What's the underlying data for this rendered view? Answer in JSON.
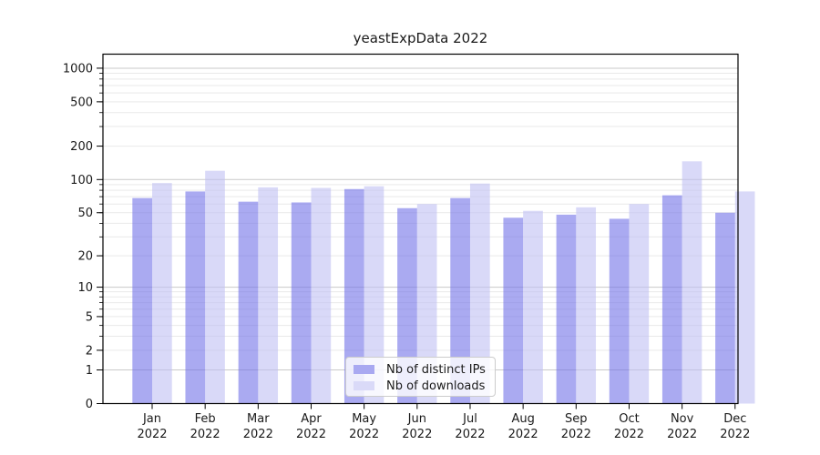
{
  "title": "yeastExpData 2022",
  "chart_data": {
    "type": "bar",
    "title": "yeastExpData 2022",
    "categories": [
      "Jan 2022",
      "Feb 2022",
      "Mar 2022",
      "Apr 2022",
      "May 2022",
      "Jun 2022",
      "Jul 2022",
      "Aug 2022",
      "Sep 2022",
      "Oct 2022",
      "Nov 2022",
      "Dec 2022"
    ],
    "series": [
      {
        "name": "Nb of distinct IPs",
        "color": "#a9a9f1",
        "fill": "rgba(113,113,232,0.6)",
        "values": [
          68,
          78,
          63,
          62,
          82,
          55,
          68,
          45,
          48,
          44,
          72,
          50
        ]
      },
      {
        "name": "Nb of downloads",
        "color": "#dadaf8",
        "fill": "rgba(192,192,243,0.6)",
        "values": [
          93,
          120,
          85,
          84,
          87,
          60,
          92,
          52,
          56,
          60,
          146,
          78
        ]
      }
    ],
    "yscale": "log1p",
    "yticks": [
      0,
      1,
      2,
      5,
      10,
      20,
      50,
      100,
      200,
      500,
      1000
    ],
    "ylim": [
      0,
      1336
    ],
    "xlabel": "",
    "ylabel": "",
    "grid": true,
    "grid_major_color": "#c9c9c9",
    "grid_minor_color": "#e9e9e9",
    "axis_color": "#000000",
    "text_color": "#1a1a1a",
    "legend_position": "lower center"
  }
}
